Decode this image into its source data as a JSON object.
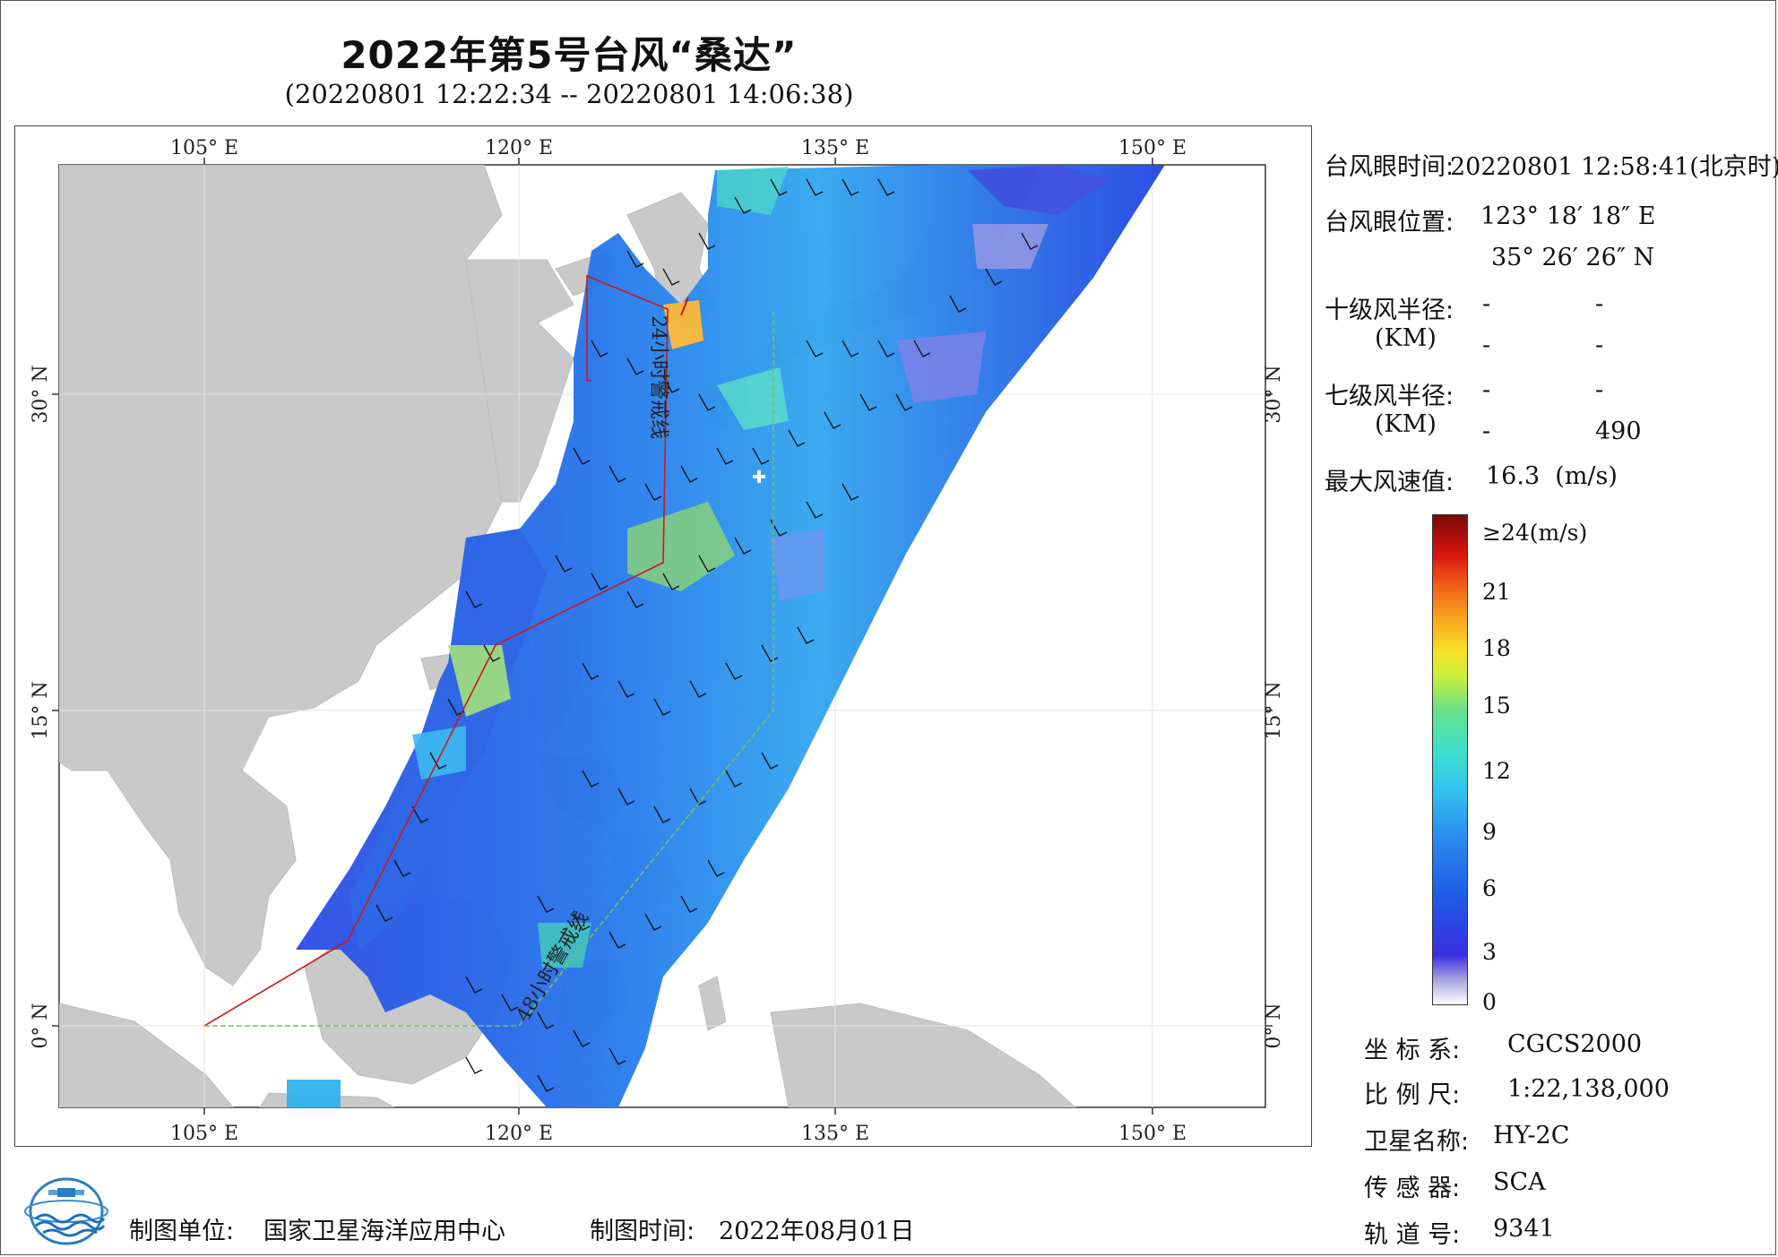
{
  "header": {
    "title": "2022年第5号台风“桑达”",
    "subtitle": "(20220801 12:22:34 -- 20220801 14:06:38)"
  },
  "map": {
    "top_lon_labels": [
      "105° E",
      "120° E",
      "135° E",
      "150° E"
    ],
    "bottom_lon_labels": [
      "105° E",
      "120° E",
      "135° E",
      "150° E"
    ],
    "left_lat_labels": [
      "30° N",
      "15° N",
      "0° N"
    ],
    "right_lat_labels": [
      "30° N",
      "15° N",
      "0° N"
    ],
    "track_label_24h": "24小时警戒线",
    "track_label_48h": "48小时警戒线",
    "colors": {
      "land": "#c8c8c8",
      "sea": "#ffffff",
      "warning_24h": "#d01818",
      "warning_48h": "#8ac46a"
    }
  },
  "info": {
    "eye_time_label": "台风眼时间:",
    "eye_time_value": "20220801 12:58:41(北京时)",
    "eye_pos_label": "台风眼位置:",
    "eye_pos_lon": "123° 18′ 18″ E",
    "eye_pos_lat": "35° 26′ 26″ N",
    "r10_label": "十级风半径:",
    "r10_unit": "(KM)",
    "r10_v1": "-",
    "r10_v2": "-",
    "r10_v3": "-",
    "r10_v4": "-",
    "r7_label": "七级风半径:",
    "r7_unit": "(KM)",
    "r7_v1": "-",
    "r7_v2": "-",
    "r7_v3": "-",
    "r7_v4": "490",
    "max_wind_label": "最大风速值:",
    "max_wind_value": "16.3  (m/s)"
  },
  "legend": {
    "ticks": [
      "≥24(m/s)",
      "21",
      "18",
      "15",
      "12",
      "9",
      "6",
      "3",
      "0"
    ]
  },
  "meta": {
    "crs_label": "坐 标 系:",
    "crs_value": "CGCS2000",
    "scale_label": "比 例 尺:",
    "scale_value": "1:22,138,000",
    "satellite_label": "卫星名称:",
    "satellite_value": "HY-2C",
    "sensor_label": "传 感 器:",
    "sensor_value": "SCA",
    "orbit_label": "轨 道 号:",
    "orbit_value": "9341"
  },
  "footer": {
    "unit_label": "制图单位:",
    "unit_value": "国家卫星海洋应用中心",
    "time_label": "制图时间:",
    "time_value": "2022年08月01日"
  }
}
